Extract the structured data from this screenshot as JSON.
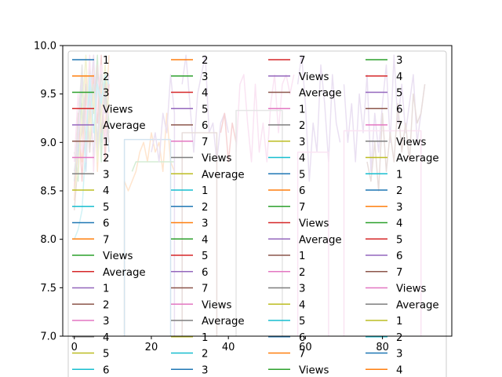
{
  "chart_data": {
    "type": "line",
    "title": "",
    "xlabel": "",
    "ylabel": "",
    "xlim": [
      -3,
      98
    ],
    "ylim": [
      7.0,
      10.0
    ],
    "xticks": [
      0,
      20,
      40,
      60,
      80
    ],
    "yticks": [
      7.0,
      7.5,
      8.0,
      8.5,
      9.0,
      9.5,
      10.0
    ],
    "xtick_labels": [
      "0",
      "20",
      "40",
      "60",
      "80"
    ],
    "ytick_labels": [
      "7.0",
      "7.5",
      "8.0",
      "8.5",
      "9.0",
      "9.5",
      "10.0"
    ],
    "grid": false,
    "legend_position": "inside, filling the plot area and extending below it (4 columns)",
    "palette": [
      "#1f77b4",
      "#ff7f0e",
      "#2ca02c",
      "#d62728",
      "#9467bd",
      "#8c564b",
      "#e377c2",
      "#7f7f7f",
      "#bcbd22",
      "#17becf"
    ],
    "legend_columns": [
      [
        "1",
        "2",
        "3",
        "Views",
        "Average",
        "1",
        "2",
        "3",
        "4",
        "5",
        "6",
        "7",
        "Views",
        "Average",
        "1",
        "2",
        "3",
        "4",
        "5",
        "6"
      ],
      [
        "2",
        "3",
        "4",
        "5",
        "6",
        "7",
        "Views",
        "Average",
        "1",
        "2",
        "3",
        "4",
        "5",
        "6",
        "7",
        "Views",
        "Average",
        "1",
        "2",
        "3"
      ],
      [
        "7",
        "Views",
        "Average",
        "1",
        "2",
        "3",
        "4",
        "5",
        "6",
        "7",
        "Views",
        "Average",
        "1",
        "2",
        "3",
        "4",
        "5",
        "6",
        "7",
        "Views"
      ],
      [
        "3",
        "4",
        "5",
        "6",
        "7",
        "Views",
        "Average",
        "1",
        "2",
        "3",
        "4",
        "5",
        "6",
        "7",
        "Views",
        "Average",
        "1",
        "2",
        "3",
        "4"
      ]
    ],
    "legend_color_offsets": [
      0,
      1,
      3,
      2
    ],
    "series": [
      {
        "x": [
          0,
          1,
          2,
          3,
          4,
          5,
          6,
          7,
          8,
          9
        ],
        "y": [
          8.6,
          8.9,
          9.4,
          8.7,
          9.6,
          8.8,
          9.8,
          9.0,
          9.5,
          8.9
        ],
        "color": "#1f77b4"
      },
      {
        "x": [
          0,
          1,
          2,
          3,
          4,
          5,
          6,
          7,
          8,
          9
        ],
        "y": [
          8.4,
          9.1,
          8.8,
          9.7,
          9.2,
          9.9,
          8.7,
          9.6,
          9.1,
          9.9
        ],
        "color": "#ff7f0e"
      },
      {
        "x": [
          0,
          1,
          2,
          3,
          4,
          5,
          6,
          7,
          8,
          9
        ],
        "y": [
          8.9,
          8.6,
          9.6,
          9.0,
          9.8,
          9.3,
          9.9,
          8.8,
          9.7,
          9.2
        ],
        "color": "#2ca02c"
      },
      {
        "x": [
          0,
          1,
          2,
          3,
          4,
          5,
          6,
          7,
          8,
          9
        ],
        "y": [
          8.5,
          9.3,
          8.6,
          9.5,
          8.9,
          9.7,
          9.2,
          9.9,
          8.8,
          9.6
        ],
        "color": "#d62728"
      },
      {
        "x": [
          0,
          1,
          2,
          3,
          4,
          5,
          6,
          7,
          8,
          9
        ],
        "y": [
          8.7,
          9.0,
          9.7,
          8.8,
          9.4,
          9.9,
          8.9,
          9.5,
          9.3,
          9.7
        ],
        "color": "#9467bd"
      },
      {
        "x": [
          0,
          1,
          2,
          3,
          4,
          5,
          6,
          7,
          8,
          9
        ],
        "y": [
          8.3,
          8.8,
          9.1,
          9.6,
          8.9,
          9.4,
          9.8,
          9.1,
          9.6,
          9.0
        ],
        "color": "#8c564b"
      },
      {
        "x": [
          0,
          1,
          2,
          3,
          4,
          5,
          6,
          7,
          8,
          9
        ],
        "y": [
          8.8,
          9.5,
          8.9,
          9.2,
          9.9,
          8.7,
          9.5,
          9.8,
          9.0,
          9.4
        ],
        "color": "#e377c2"
      },
      {
        "x": [
          0,
          1,
          2,
          3,
          4,
          5,
          6,
          7,
          8,
          9
        ],
        "y": [
          8.6,
          9.2,
          9.8,
          8.9,
          9.3,
          9.6,
          9.0,
          9.7,
          9.4,
          9.1
        ],
        "color": "#7f7f7f"
      },
      {
        "x": [
          0,
          1,
          2,
          3,
          4,
          5,
          6,
          7,
          8,
          9
        ],
        "y": [
          8.5,
          8.7,
          9.3,
          9.9,
          9.0,
          9.5,
          8.8,
          9.3,
          9.8,
          9.3
        ],
        "color": "#bcbd22"
      },
      {
        "x": [
          0,
          1,
          2,
          3,
          4,
          5,
          6,
          7,
          8,
          9
        ],
        "y": [
          8.0,
          8.1,
          8.3,
          9.0,
          9.7,
          9.1,
          9.6,
          9.4,
          9.7,
          9.6
        ],
        "color": "#17becf"
      },
      {
        "x": [
          13,
          13,
          14,
          15,
          16,
          17,
          18,
          19,
          20,
          21,
          22,
          23,
          24,
          25,
          26
        ],
        "y": [
          7.0,
          8.6,
          8.5,
          8.6,
          8.7,
          8.9,
          9.0,
          8.8,
          9.1,
          8.9,
          9.0,
          8.7,
          9.3,
          8.8,
          8.7
        ],
        "color": "#ff7f0e"
      },
      {
        "x": [
          13,
          13,
          25,
          25
        ],
        "y": [
          7.0,
          9.03,
          9.03,
          7.0
        ],
        "color": "#1f77b4"
      },
      {
        "x": [
          15,
          16,
          18,
          20,
          22,
          24,
          26
        ],
        "y": [
          8.7,
          8.8,
          8.8,
          8.8,
          8.8,
          8.8,
          8.8
        ],
        "color": "#2ca02c"
      },
      {
        "x": [
          20,
          21,
          22,
          23,
          24,
          25,
          26,
          26
        ],
        "y": [
          8.9,
          9.1,
          8.8,
          9.3,
          9.1,
          9.7,
          9.3,
          7.0
        ],
        "color": "#9467bd"
      },
      {
        "x": [
          28,
          29,
          30,
          31,
          32,
          33,
          34,
          35,
          36,
          37,
          38,
          39,
          40
        ],
        "y": [
          9.6,
          9.9,
          9.4,
          8.9,
          9.5,
          9.7,
          9.9,
          9.1,
          9.2,
          8.8,
          9.2,
          9.3,
          9.1
        ],
        "color": "#9467bd"
      },
      {
        "x": [
          28,
          28,
          37,
          37
        ],
        "y": [
          7.0,
          9.1,
          9.1,
          7.0
        ],
        "color": "#8c564b"
      },
      {
        "x": [
          38,
          39,
          40,
          41,
          42
        ],
        "y": [
          9.1,
          9.3,
          8.8,
          9.2,
          9.0
        ],
        "color": "#d62728"
      },
      {
        "x": [
          42,
          43,
          44,
          45,
          46,
          47,
          48,
          49,
          50,
          51,
          52,
          53,
          54,
          55,
          56,
          57
        ],
        "y": [
          8.9,
          9.6,
          9.7,
          9.2,
          8.8,
          9.6,
          8.9,
          9.2,
          8.8,
          9.4,
          9.7,
          9.1,
          9.6,
          9.7,
          9.5,
          9.7
        ],
        "color": "#e377c2"
      },
      {
        "x": [
          42,
          42,
          54,
          54
        ],
        "y": [
          7.0,
          9.33,
          9.33,
          7.0
        ],
        "color": "#7f7f7f"
      },
      {
        "x": [
          58,
          59,
          60,
          61,
          62,
          63,
          64,
          65,
          66,
          67,
          68,
          69
        ],
        "y": [
          9.6,
          9.9,
          9.4,
          8.6,
          9.2,
          8.9,
          9.8,
          9.4,
          8.8,
          9.7,
          9.2,
          9.0
        ],
        "color": "#9467bd"
      },
      {
        "x": [
          58,
          58,
          66,
          66
        ],
        "y": [
          7.0,
          8.9,
          8.9,
          7.0
        ],
        "color": "#e377c2"
      },
      {
        "x": [
          70,
          71,
          72,
          73,
          74,
          75,
          76,
          77,
          78,
          79,
          80,
          81,
          82,
          83,
          84,
          85,
          86,
          87,
          88,
          89,
          90,
          91
        ],
        "y": [
          9.6,
          9.0,
          9.4,
          8.8,
          9.5,
          9.1,
          9.7,
          8.7,
          9.3,
          8.9,
          9.4,
          9.8,
          9.0,
          9.9,
          9.2,
          9.6,
          9.1,
          9.4,
          9.7,
          9.0,
          9.3,
          9.6
        ],
        "color": "#9467bd"
      },
      {
        "x": [
          70,
          70,
          90,
          90
        ],
        "y": [
          7.0,
          9.12,
          9.12,
          7.0
        ],
        "color": "#e377c2"
      },
      {
        "x": [
          76,
          77,
          78,
          79,
          80,
          81,
          82,
          83,
          84,
          85,
          86,
          87,
          88,
          89,
          90,
          91
        ],
        "y": [
          8.8,
          8.6,
          9.0,
          8.5,
          9.3,
          8.7,
          9.1,
          8.8,
          9.4,
          8.9,
          9.2,
          8.8,
          9.5,
          9.2,
          9.3,
          9.6
        ],
        "color": "#8c564b"
      }
    ]
  }
}
